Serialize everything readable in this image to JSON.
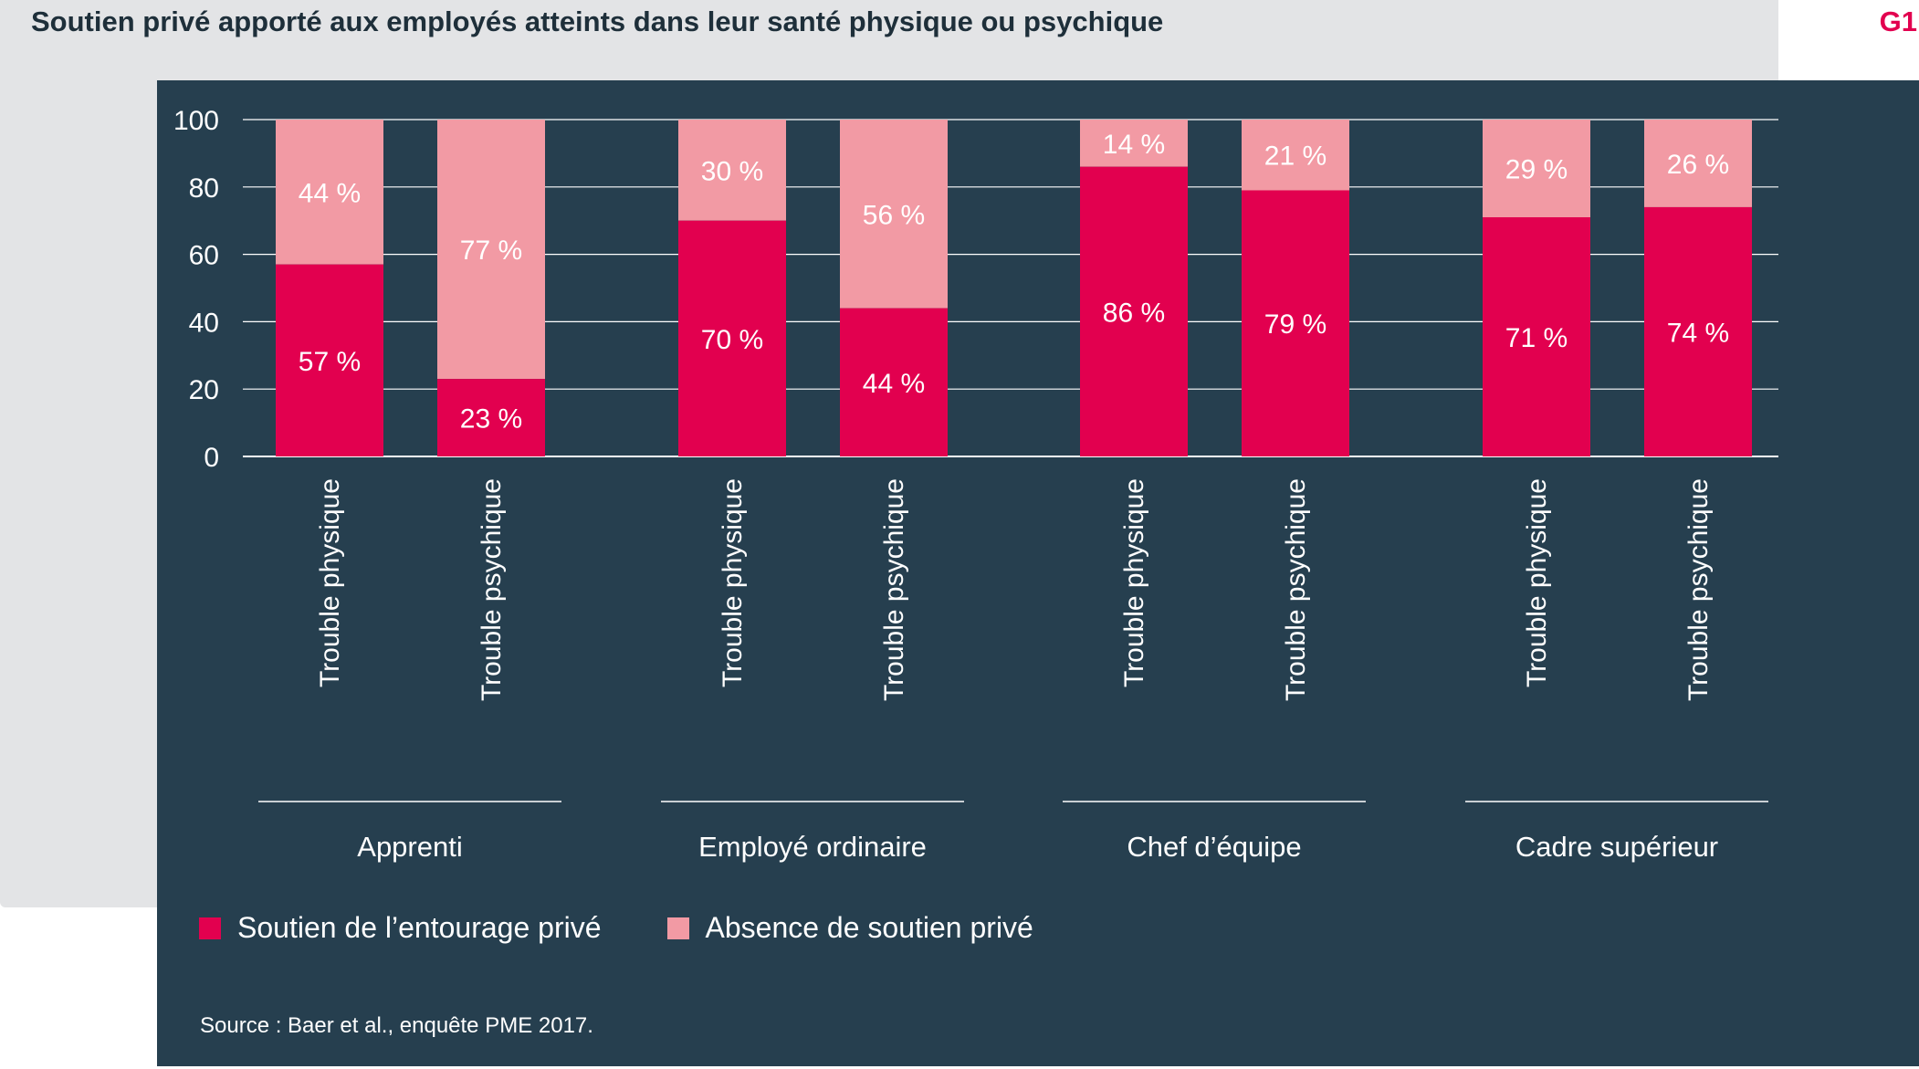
{
  "header": {
    "title": "Soutien privé apporté aux employés atteints dans leur santé physique ou psychique",
    "figure_tag": "G1"
  },
  "colors": {
    "support": "#e2004f",
    "no_support": "#f29aa4",
    "panel": "#263f4f",
    "text": "#ffffff",
    "title": "#1e2f3a"
  },
  "legend": [
    {
      "label": "Soutien de l’entourage privé",
      "color": "#e2004f"
    },
    {
      "label": "Absence de soutien privé",
      "color": "#f29aa4"
    }
  ],
  "source": "Source : Baer et al., enquête PME 2017.",
  "chart_data": {
    "type": "bar",
    "stacked": true,
    "ylim": [
      0,
      100
    ],
    "yticks": [
      0,
      20,
      40,
      60,
      80,
      100
    ],
    "grid": true,
    "groups": [
      "Apprenti",
      "Employé ordinaire",
      "Chef d’équipe",
      "Cadre supérieur"
    ],
    "categories": [
      "Trouble physique",
      "Trouble psychique"
    ],
    "series": [
      {
        "name": "Soutien de l’entourage privé",
        "values": [
          [
            57,
            23
          ],
          [
            70,
            44
          ],
          [
            86,
            79
          ],
          [
            71,
            74
          ]
        ]
      },
      {
        "name": "Absence de soutien privé",
        "values": [
          [
            44,
            77
          ],
          [
            30,
            56
          ],
          [
            14,
            21
          ],
          [
            29,
            26
          ]
        ]
      }
    ],
    "labels": [
      {
        "support": [
          "57 %",
          "23 %"
        ],
        "no_support": [
          "44 %",
          "77 %"
        ]
      },
      {
        "support": [
          "70 %",
          "44 %"
        ],
        "no_support": [
          "30 %",
          "56 %"
        ]
      },
      {
        "support": [
          "86 %",
          "79 %"
        ],
        "no_support": [
          "14 %",
          "21 %"
        ]
      },
      {
        "support": [
          "71 %",
          "74 %"
        ],
        "no_support": [
          "29 %",
          "26 %"
        ]
      }
    ],
    "legend_position": "bottom-left"
  }
}
